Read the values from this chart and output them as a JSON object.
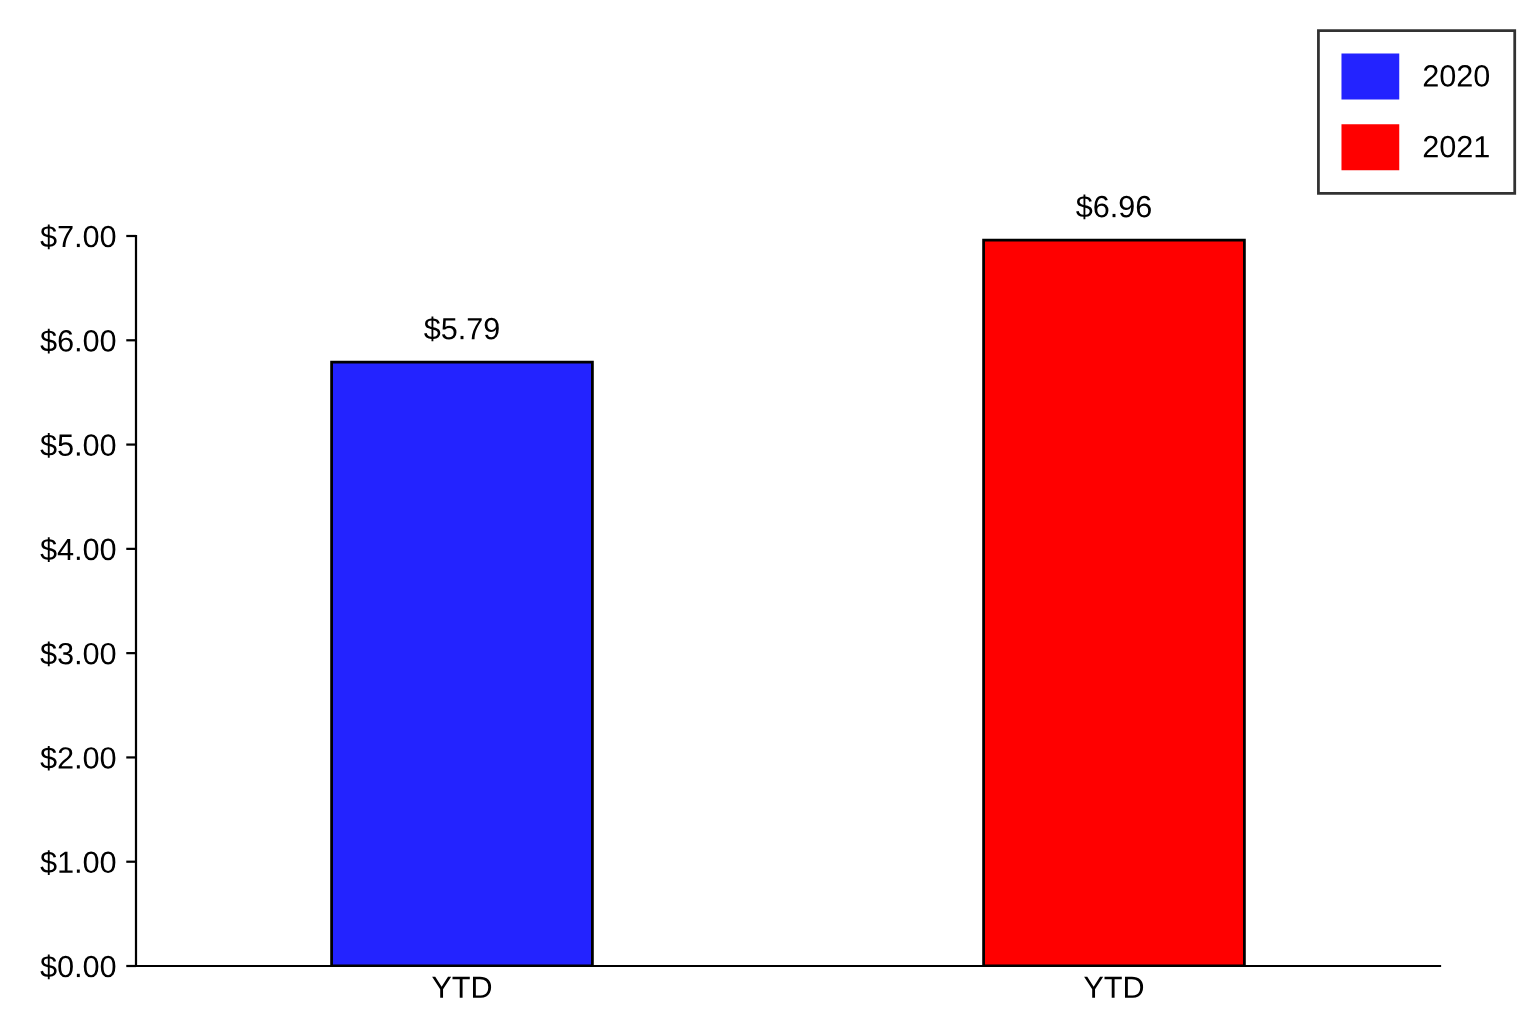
{
  "chart_data": {
    "type": "bar",
    "categories": [
      "YTD",
      "YTD"
    ],
    "series": [
      {
        "name": "2020",
        "color": "#2323ff",
        "values": [
          5.79,
          null
        ],
        "value_labels": [
          "$5.79",
          null
        ]
      },
      {
        "name": "2021",
        "color": "#ff0000",
        "values": [
          null,
          6.96
        ],
        "value_labels": [
          null,
          "$6.96"
        ]
      }
    ],
    "ylim": [
      0,
      7
    ],
    "yticks": [
      {
        "value": 0,
        "label": "$0.00"
      },
      {
        "value": 1,
        "label": "$1.00"
      },
      {
        "value": 2,
        "label": "$2.00"
      },
      {
        "value": 3,
        "label": "$3.00"
      },
      {
        "value": 4,
        "label": "$4.00"
      },
      {
        "value": 5,
        "label": "$5.00"
      },
      {
        "value": 6,
        "label": "$6.00"
      },
      {
        "value": 7,
        "label": "$7.00"
      }
    ],
    "legend": "top right",
    "grid": false
  }
}
